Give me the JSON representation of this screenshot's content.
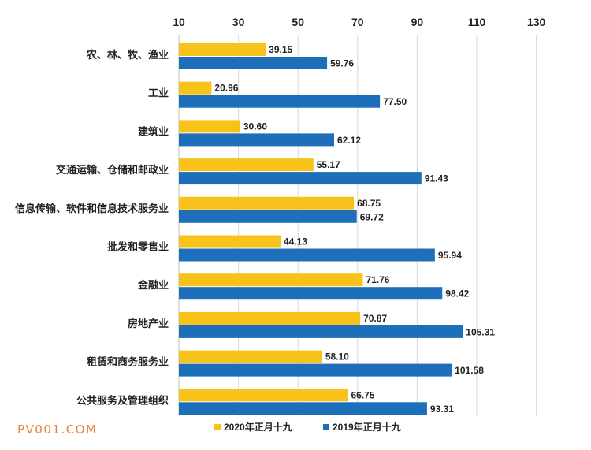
{
  "watermark": "PV001.COM",
  "colors": {
    "series_2020": "#F7C31A",
    "series_2019": "#1D6FB9",
    "grid": "#d9d9d9",
    "text": "#222222"
  },
  "chart_data": {
    "type": "bar",
    "orientation": "horizontal",
    "title": "",
    "xlabel": "",
    "ylabel": "",
    "xlim": [
      10,
      130
    ],
    "xticks": [
      10,
      30,
      50,
      70,
      90,
      110,
      130
    ],
    "x_axis_position": "top",
    "grid": true,
    "legend": "bottom",
    "categories": [
      "农、林、牧、渔业",
      "工业",
      "建筑业",
      "交通运输、仓储和邮政业",
      "信息传输、软件和信息技术服务业",
      "批发和零售业",
      "金融业",
      "房地产业",
      "租赁和商务服务业",
      "公共服务及管理组织"
    ],
    "series": [
      {
        "name": "2020年正月十九",
        "values": [
          39.15,
          20.96,
          30.6,
          55.17,
          68.75,
          44.13,
          71.76,
          70.87,
          58.1,
          66.75
        ],
        "labels": [
          "39.15",
          "20.96",
          "30.60",
          "55.17",
          "68.75",
          "44.13",
          "71.76",
          "70.87",
          "58.10",
          "66.75"
        ]
      },
      {
        "name": "2019年正月十九",
        "values": [
          59.76,
          77.5,
          62.12,
          91.43,
          69.72,
          95.94,
          98.42,
          105.31,
          101.58,
          93.31
        ],
        "labels": [
          "59.76",
          "77.50",
          "62.12",
          "91.43",
          "69.72",
          "95.94",
          "98.42",
          "105.31",
          "101.58",
          "93.31"
        ]
      }
    ]
  }
}
